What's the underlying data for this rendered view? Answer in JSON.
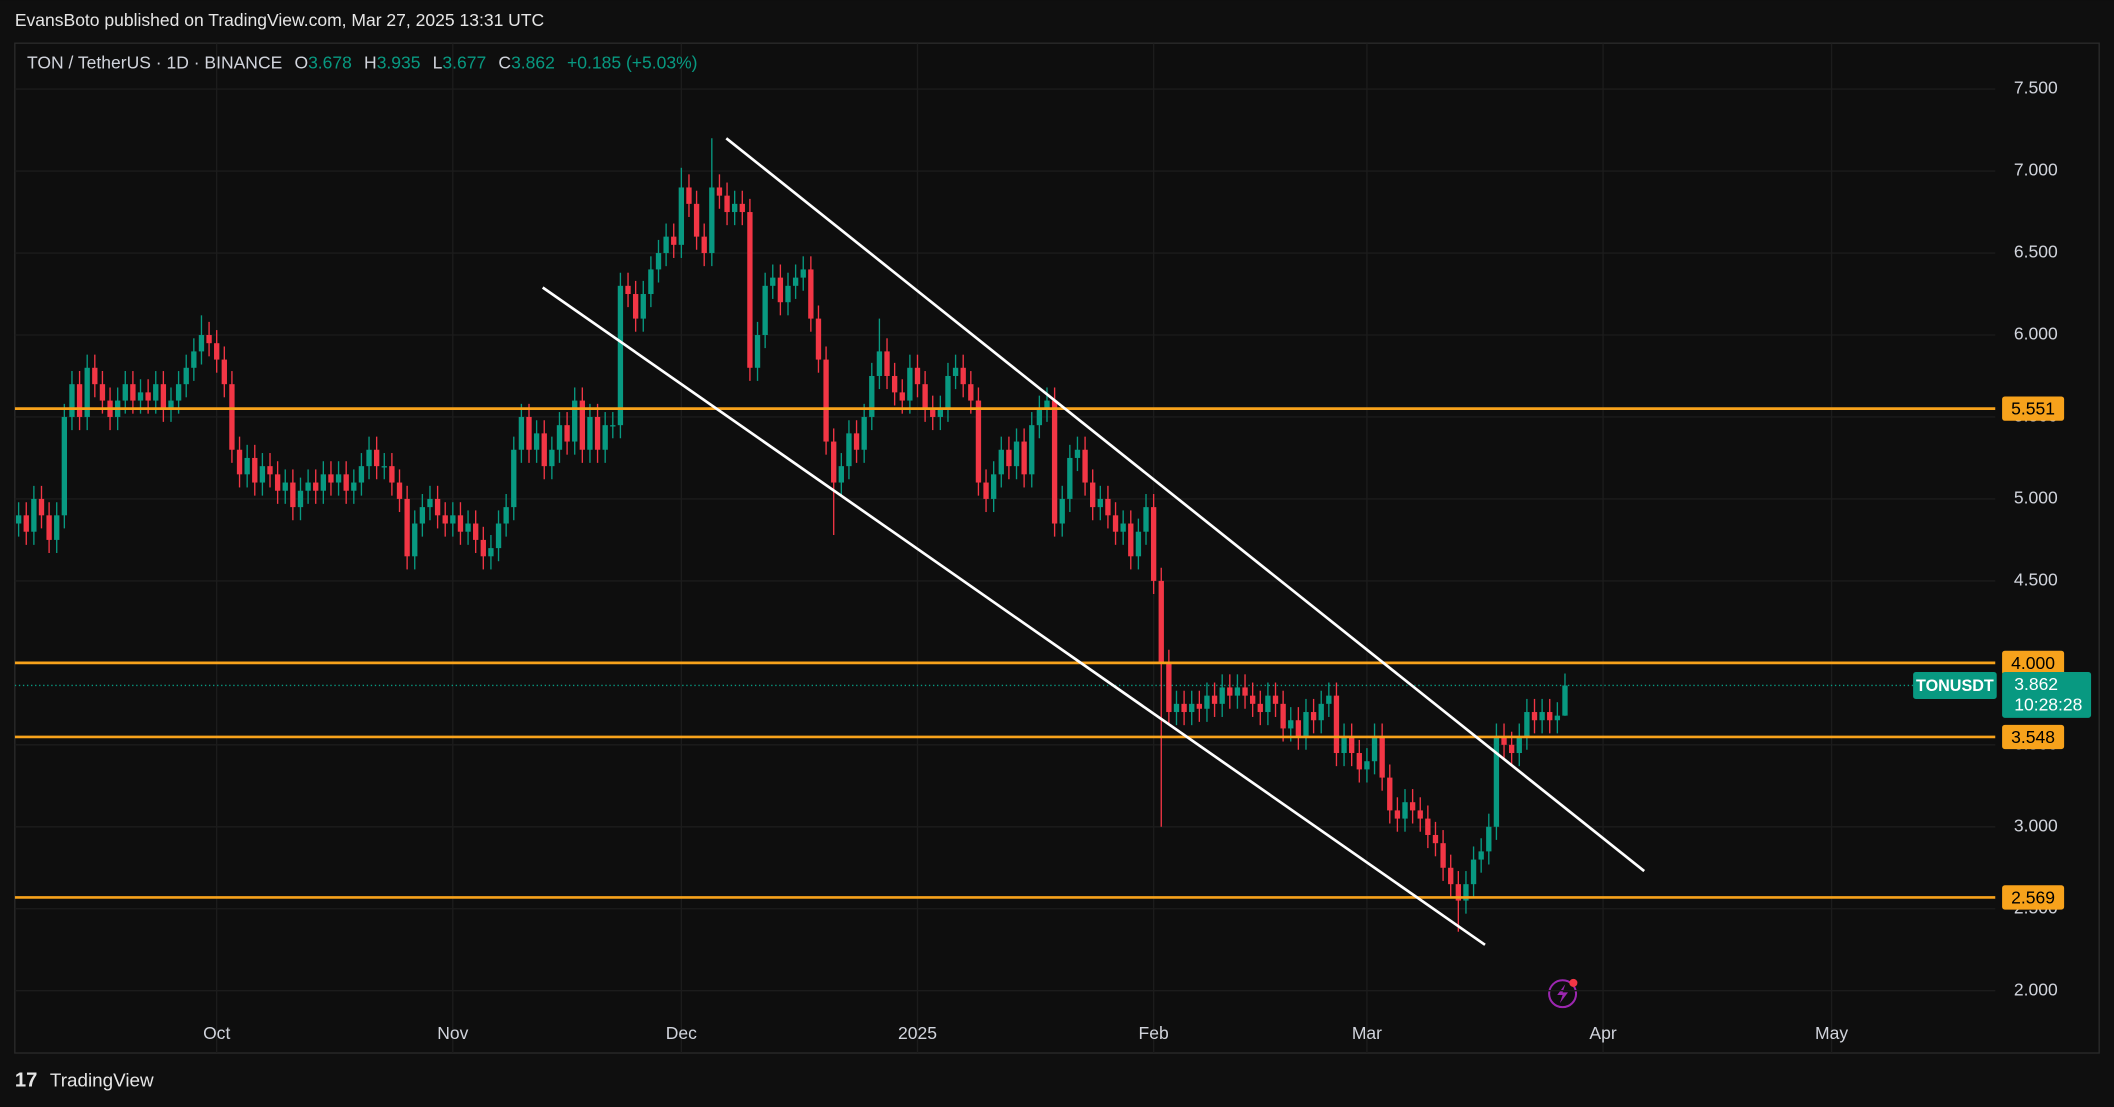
{
  "header": "EvansBoto published on TradingView.com, Mar 27, 2025 13:31 UTC",
  "footer": "TradingView",
  "chart_data": {
    "type": "candlestick",
    "symbol": "TON / TetherUS · 1D · BINANCE",
    "ohlc_labels": [
      "O",
      "H",
      "L",
      "C"
    ],
    "change": "+0.185 (+5.03%)",
    "up_color": "#089981",
    "down_color": "#f23645",
    "level_color": "#f7a21b",
    "channel_color": "#ffffff",
    "open": [
      4.85,
      4.9,
      4.8,
      5.0,
      4.9,
      4.75,
      4.9,
      5.5,
      5.7,
      5.5,
      5.8,
      5.7,
      5.6,
      5.5,
      5.6,
      5.7,
      5.6,
      5.65,
      5.6,
      5.7,
      5.55,
      5.6,
      5.7,
      5.8,
      5.9,
      6.0,
      5.95,
      5.85,
      5.7,
      5.3,
      5.15,
      5.25,
      5.1,
      5.2,
      5.15,
      5.05,
      5.1,
      4.95,
      5.05,
      5.1,
      5.05,
      5.15,
      5.1,
      5.15,
      5.05,
      5.1,
      5.2,
      5.3,
      5.2,
      5.2,
      5.1,
      5.0,
      4.65,
      4.85,
      4.95,
      5.0,
      4.9,
      4.85,
      4.9,
      4.8,
      4.85,
      4.75,
      4.65,
      4.7,
      4.85,
      4.95,
      5.3,
      5.5,
      5.3,
      5.4,
      5.2,
      5.3,
      5.45,
      5.35,
      5.6,
      5.3,
      5.5,
      5.3,
      5.45,
      5.45,
      6.3,
      6.25,
      6.1,
      6.25,
      6.4,
      6.5,
      6.6,
      6.55,
      6.9,
      6.8,
      6.6,
      6.5,
      6.9,
      6.85,
      6.75,
      6.8,
      6.75,
      5.8,
      6.0,
      6.3,
      6.35,
      6.2,
      6.3,
      6.35,
      6.4,
      6.1,
      5.85,
      5.35,
      5.1,
      5.2,
      5.4,
      5.3,
      5.5,
      5.75,
      5.9,
      5.75,
      5.65,
      5.6,
      5.8,
      5.7,
      5.55,
      5.5,
      5.55,
      5.75,
      5.8,
      5.7,
      5.6,
      5.1,
      5.0,
      5.15,
      5.3,
      5.2,
      5.35,
      5.15,
      5.45,
      5.55,
      5.6,
      4.85,
      5.0,
      5.25,
      5.3,
      5.1,
      4.95,
      5.0,
      4.9,
      4.8,
      4.85,
      4.65,
      4.8,
      4.95,
      4.5,
      4.0,
      3.7,
      3.75,
      3.7,
      3.75,
      3.72,
      3.8,
      3.75,
      3.85,
      3.8,
      3.85,
      3.8,
      3.75,
      3.7,
      3.8,
      3.75,
      3.6,
      3.65,
      3.55,
      3.7,
      3.65,
      3.75,
      3.8,
      3.45,
      3.55,
      3.45,
      3.35,
      3.4,
      3.55,
      3.3,
      3.1,
      3.05,
      3.15,
      3.1,
      3.05,
      2.95,
      2.9,
      2.75,
      2.65,
      2.55,
      2.65,
      2.8,
      2.85,
      3.0,
      3.55,
      3.5,
      3.45,
      3.55,
      3.7,
      3.65,
      3.7,
      3.65,
      3.678
    ],
    "high": [
      4.98,
      4.98,
      5.08,
      5.08,
      4.98,
      4.98,
      5.58,
      5.78,
      5.78,
      5.88,
      5.88,
      5.78,
      5.68,
      5.68,
      5.78,
      5.78,
      5.73,
      5.73,
      5.78,
      5.78,
      5.68,
      5.78,
      5.88,
      5.98,
      6.12,
      6.08,
      6.03,
      5.93,
      5.78,
      5.38,
      5.33,
      5.33,
      5.28,
      5.28,
      5.23,
      5.18,
      5.18,
      5.13,
      5.18,
      5.18,
      5.23,
      5.23,
      5.23,
      5.23,
      5.18,
      5.28,
      5.38,
      5.38,
      5.28,
      5.28,
      5.18,
      5.08,
      4.93,
      5.03,
      5.08,
      5.08,
      4.98,
      4.98,
      4.98,
      4.93,
      4.93,
      4.83,
      4.78,
      4.93,
      5.03,
      5.38,
      5.58,
      5.58,
      5.48,
      5.48,
      5.38,
      5.53,
      5.53,
      5.68,
      5.68,
      5.58,
      5.58,
      5.53,
      5.53,
      6.38,
      6.38,
      6.33,
      6.33,
      6.48,
      6.58,
      6.68,
      6.68,
      7.02,
      6.98,
      6.88,
      6.68,
      7.2,
      6.98,
      6.93,
      6.88,
      6.88,
      6.83,
      6.08,
      6.38,
      6.43,
      6.43,
      6.38,
      6.43,
      6.48,
      6.48,
      6.18,
      5.93,
      5.43,
      5.28,
      5.48,
      5.48,
      5.58,
      5.83,
      6.1,
      5.98,
      5.83,
      5.73,
      5.88,
      5.88,
      5.78,
      5.63,
      5.63,
      5.83,
      5.88,
      5.88,
      5.78,
      5.68,
      5.18,
      5.23,
      5.38,
      5.38,
      5.43,
      5.43,
      5.53,
      5.63,
      5.68,
      5.68,
      5.08,
      5.33,
      5.38,
      5.38,
      5.18,
      5.08,
      5.08,
      4.98,
      4.93,
      4.93,
      4.88,
      5.03,
      5.03,
      4.58,
      4.08,
      3.83,
      3.83,
      3.83,
      3.83,
      3.88,
      3.88,
      3.93,
      3.93,
      3.93,
      3.93,
      3.88,
      3.83,
      3.88,
      3.88,
      3.83,
      3.73,
      3.73,
      3.78,
      3.78,
      3.83,
      3.88,
      3.88,
      3.63,
      3.63,
      3.53,
      3.48,
      3.63,
      3.63,
      3.38,
      3.18,
      3.23,
      3.23,
      3.18,
      3.13,
      3.03,
      2.98,
      2.83,
      2.73,
      2.73,
      2.88,
      2.93,
      3.08,
      3.63,
      3.63,
      3.58,
      3.63,
      3.78,
      3.78,
      3.78,
      3.78,
      3.76,
      3.935
    ],
    "low": [
      4.77,
      4.72,
      4.72,
      4.82,
      4.67,
      4.67,
      4.82,
      5.42,
      5.42,
      5.42,
      5.62,
      5.52,
      5.42,
      5.42,
      5.52,
      5.52,
      5.52,
      5.52,
      5.52,
      5.47,
      5.47,
      5.52,
      5.62,
      5.72,
      5.82,
      5.87,
      5.77,
      5.62,
      5.22,
      5.07,
      5.07,
      5.02,
      5.02,
      5.07,
      4.97,
      4.97,
      4.87,
      4.87,
      4.97,
      4.97,
      4.97,
      5.02,
      5.02,
      4.97,
      4.97,
      5.02,
      5.12,
      5.12,
      5.12,
      5.02,
      4.92,
      4.57,
      4.57,
      4.77,
      4.87,
      4.82,
      4.77,
      4.77,
      4.72,
      4.72,
      4.67,
      4.57,
      4.57,
      4.62,
      4.77,
      4.87,
      5.22,
      5.22,
      5.22,
      5.12,
      5.12,
      5.22,
      5.27,
      5.27,
      5.22,
      5.22,
      5.22,
      5.22,
      5.37,
      5.37,
      6.17,
      6.02,
      6.02,
      6.17,
      6.32,
      6.42,
      6.47,
      6.47,
      6.72,
      6.52,
      6.42,
      6.42,
      6.77,
      6.67,
      6.67,
      6.67,
      5.72,
      5.72,
      5.92,
      6.22,
      6.12,
      6.12,
      6.22,
      6.27,
      6.02,
      5.77,
      5.27,
      4.78,
      5.02,
      5.12,
      5.22,
      5.22,
      5.42,
      5.67,
      5.67,
      5.57,
      5.52,
      5.52,
      5.62,
      5.47,
      5.42,
      5.42,
      5.47,
      5.67,
      5.62,
      5.52,
      5.02,
      4.92,
      4.92,
      5.07,
      5.12,
      5.12,
      5.07,
      5.07,
      5.37,
      5.47,
      4.77,
      4.77,
      4.92,
      5.17,
      5.02,
      4.87,
      4.87,
      4.82,
      4.72,
      4.72,
      4.57,
      4.57,
      4.72,
      4.42,
      3.0,
      3.62,
      3.62,
      3.62,
      3.62,
      3.64,
      3.64,
      3.67,
      3.67,
      3.72,
      3.72,
      3.72,
      3.67,
      3.62,
      3.62,
      3.67,
      3.52,
      3.52,
      3.47,
      3.47,
      3.57,
      3.57,
      3.67,
      3.37,
      3.37,
      3.37,
      3.27,
      3.27,
      3.32,
      3.22,
      3.02,
      2.97,
      2.97,
      3.02,
      2.97,
      2.87,
      2.82,
      2.67,
      2.57,
      2.36,
      2.47,
      2.57,
      2.72,
      2.77,
      2.92,
      3.42,
      3.37,
      3.37,
      3.47,
      3.57,
      3.57,
      3.57,
      3.57,
      3.677
    ],
    "close": [
      4.9,
      4.8,
      5.0,
      4.9,
      4.75,
      4.9,
      5.5,
      5.7,
      5.5,
      5.8,
      5.7,
      5.6,
      5.5,
      5.6,
      5.7,
      5.6,
      5.65,
      5.6,
      5.7,
      5.55,
      5.6,
      5.7,
      5.8,
      5.9,
      6.0,
      5.95,
      5.85,
      5.7,
      5.3,
      5.15,
      5.25,
      5.1,
      5.2,
      5.15,
      5.05,
      5.1,
      4.95,
      5.05,
      5.1,
      5.05,
      5.15,
      5.1,
      5.15,
      5.05,
      5.1,
      5.2,
      5.3,
      5.2,
      5.2,
      5.1,
      5.0,
      4.65,
      4.85,
      4.95,
      5.0,
      4.9,
      4.85,
      4.9,
      4.8,
      4.85,
      4.75,
      4.65,
      4.7,
      4.85,
      4.95,
      5.3,
      5.5,
      5.3,
      5.4,
      5.2,
      5.3,
      5.45,
      5.35,
      5.6,
      5.3,
      5.5,
      5.3,
      5.45,
      5.45,
      6.3,
      6.25,
      6.1,
      6.25,
      6.4,
      6.5,
      6.6,
      6.55,
      6.9,
      6.8,
      6.6,
      6.5,
      6.9,
      6.85,
      6.75,
      6.8,
      6.75,
      5.8,
      6.0,
      6.3,
      6.35,
      6.2,
      6.3,
      6.35,
      6.4,
      6.1,
      5.85,
      5.35,
      5.1,
      5.2,
      5.4,
      5.3,
      5.5,
      5.75,
      5.9,
      5.75,
      5.65,
      5.6,
      5.8,
      5.7,
      5.55,
      5.5,
      5.55,
      5.75,
      5.8,
      5.7,
      5.6,
      5.1,
      5.0,
      5.15,
      5.3,
      5.2,
      5.35,
      5.15,
      5.45,
      5.55,
      5.6,
      4.85,
      5.0,
      5.25,
      5.3,
      5.1,
      4.95,
      5.0,
      4.9,
      4.8,
      4.85,
      4.65,
      4.8,
      4.95,
      4.5,
      4.0,
      3.7,
      3.75,
      3.7,
      3.75,
      3.72,
      3.8,
      3.75,
      3.85,
      3.8,
      3.85,
      3.8,
      3.75,
      3.7,
      3.8,
      3.75,
      3.6,
      3.65,
      3.55,
      3.7,
      3.65,
      3.75,
      3.8,
      3.45,
      3.55,
      3.45,
      3.35,
      3.4,
      3.55,
      3.3,
      3.1,
      3.05,
      3.15,
      3.1,
      3.05,
      2.95,
      2.9,
      2.75,
      2.65,
      2.55,
      2.65,
      2.8,
      2.85,
      3.0,
      3.55,
      3.5,
      3.45,
      3.55,
      3.7,
      3.65,
      3.7,
      3.65,
      3.678,
      3.862
    ],
    "xlim": [
      -0.5,
      259.5
    ],
    "xticks": [
      {
        "value": 26,
        "label": "Oct"
      },
      {
        "value": 57,
        "label": "Nov"
      },
      {
        "value": 87,
        "label": "Dec"
      },
      {
        "value": 118,
        "label": "2025"
      },
      {
        "value": 149,
        "label": "Feb"
      },
      {
        "value": 177,
        "label": "Mar"
      },
      {
        "value": 208,
        "label": "Apr"
      },
      {
        "value": 238,
        "label": "May"
      }
    ],
    "ylim": [
      1.62,
      7.78
    ],
    "yticks": [
      {
        "value": 2,
        "label": "2.000"
      },
      {
        "value": 2.5,
        "label": "2.500"
      },
      {
        "value": 3,
        "label": "3.000"
      },
      {
        "value": 3.5,
        "label": "3.500"
      },
      {
        "value": 4,
        "label": "4.000"
      },
      {
        "value": 4.5,
        "label": "4.500"
      },
      {
        "value": 5,
        "label": "5.000"
      },
      {
        "value": 5.5,
        "label": "5.500"
      },
      {
        "value": 6,
        "label": "6.000"
      },
      {
        "value": 6.5,
        "label": "6.500"
      },
      {
        "value": 7,
        "label": "7.000"
      },
      {
        "value": 7.5,
        "label": "7.500"
      }
    ],
    "levels": [
      5.551,
      {
        "value": 4,
        "label": "4.000"
      },
      3.548,
      2.569
    ],
    "channel": [
      {
        "x": [
          92.9,
          213.4
        ],
        "y": [
          7.2,
          2.73
        ]
      },
      {
        "x": [
          68.8,
          192.5
        ],
        "y": [
          6.29,
          2.28
        ]
      }
    ],
    "price_tag": {
      "name": "TONUSDT",
      "value": 3.862,
      "countdown": "10:28:28"
    }
  }
}
